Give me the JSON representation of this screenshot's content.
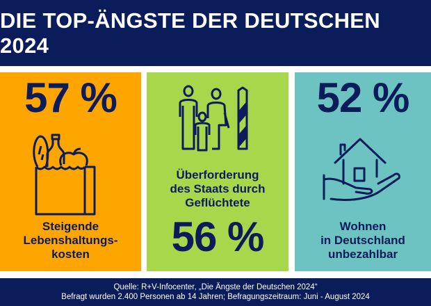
{
  "title": "DIE TOP-ÄNGSTE DER DEUTSCHEN 2024",
  "colors": {
    "navy": "#0b1c5a",
    "orange": "#ffa500",
    "green": "#a7d84c",
    "teal": "#6cc3c1"
  },
  "panels": [
    {
      "percent": "57 %",
      "icon": "grocery-bag-icon",
      "label": [
        "Steigende",
        "Lebenshaltungs-",
        "kosten"
      ]
    },
    {
      "percent": "56 %",
      "icon": "refugee-family-border-icon",
      "label": [
        "Überforderung",
        "des Staats durch",
        "Geflüchtete"
      ]
    },
    {
      "percent": "52 %",
      "icon": "house-in-hand-icon",
      "label": [
        "Wohnen",
        "in Deutschland",
        "unbezahlbar"
      ]
    }
  ],
  "footer": {
    "source": "Quelle: R+V-Infocenter, „Die Ängste der Deutschen 2024“",
    "note": "Befragt wurden 2.400 Personen ab 14 Jahren; Befragungszeitraum: Juni - August 2024"
  }
}
